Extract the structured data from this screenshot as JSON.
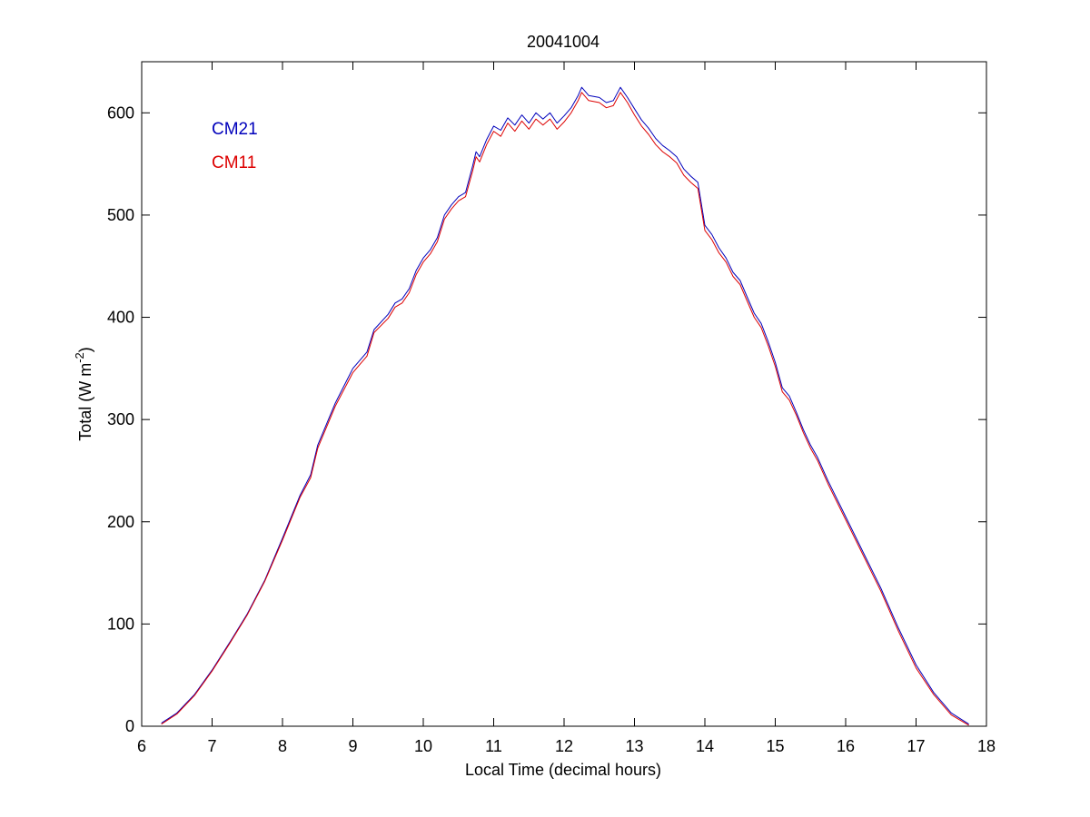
{
  "chart_data": {
    "type": "line",
    "title": "20041004",
    "xlabel": "Local Time (decimal hours)",
    "ylabel_main": "Total (W m",
    "ylabel_sup": "-2",
    "ylabel_close": ")",
    "xlim": [
      6,
      18
    ],
    "ylim": [
      0,
      650
    ],
    "xticks": [
      6,
      7,
      8,
      9,
      10,
      11,
      12,
      13,
      14,
      15,
      16,
      17,
      18
    ],
    "yticks": [
      0,
      100,
      200,
      300,
      400,
      500,
      600
    ],
    "grid": false,
    "legend_position": "top-left",
    "series": [
      {
        "name": "CM21",
        "color": "#0000bb",
        "points": [
          [
            6.28,
            3
          ],
          [
            6.5,
            13
          ],
          [
            6.75,
            31
          ],
          [
            7.0,
            55
          ],
          [
            7.25,
            82
          ],
          [
            7.5,
            110
          ],
          [
            7.75,
            143
          ],
          [
            8.0,
            184
          ],
          [
            8.25,
            226
          ],
          [
            8.4,
            246
          ],
          [
            8.5,
            275
          ],
          [
            8.75,
            316
          ],
          [
            9.0,
            350
          ],
          [
            9.2,
            366
          ],
          [
            9.3,
            388
          ],
          [
            9.5,
            403
          ],
          [
            9.6,
            414
          ],
          [
            9.7,
            418
          ],
          [
            9.8,
            428
          ],
          [
            9.9,
            446
          ],
          [
            10.0,
            458
          ],
          [
            10.1,
            466
          ],
          [
            10.2,
            478
          ],
          [
            10.3,
            500
          ],
          [
            10.4,
            510
          ],
          [
            10.5,
            518
          ],
          [
            10.6,
            522
          ],
          [
            10.7,
            548
          ],
          [
            10.75,
            562
          ],
          [
            10.8,
            557
          ],
          [
            10.9,
            574
          ],
          [
            11.0,
            587
          ],
          [
            11.1,
            583
          ],
          [
            11.2,
            595
          ],
          [
            11.3,
            588
          ],
          [
            11.4,
            598
          ],
          [
            11.5,
            590
          ],
          [
            11.6,
            600
          ],
          [
            11.7,
            594
          ],
          [
            11.8,
            600
          ],
          [
            11.9,
            590
          ],
          [
            12.0,
            597
          ],
          [
            12.1,
            605
          ],
          [
            12.2,
            617
          ],
          [
            12.25,
            625
          ],
          [
            12.35,
            617
          ],
          [
            12.5,
            615
          ],
          [
            12.6,
            610
          ],
          [
            12.7,
            612
          ],
          [
            12.8,
            625
          ],
          [
            12.9,
            615
          ],
          [
            13.0,
            604
          ],
          [
            13.1,
            593
          ],
          [
            13.2,
            585
          ],
          [
            13.3,
            575
          ],
          [
            13.4,
            568
          ],
          [
            13.5,
            563
          ],
          [
            13.6,
            557
          ],
          [
            13.7,
            545
          ],
          [
            13.8,
            538
          ],
          [
            13.9,
            532
          ],
          [
            14.0,
            490
          ],
          [
            14.1,
            481
          ],
          [
            14.2,
            468
          ],
          [
            14.3,
            458
          ],
          [
            14.4,
            444
          ],
          [
            14.5,
            436
          ],
          [
            14.6,
            420
          ],
          [
            14.7,
            404
          ],
          [
            14.8,
            394
          ],
          [
            14.9,
            376
          ],
          [
            15.0,
            356
          ],
          [
            15.1,
            331
          ],
          [
            15.2,
            323
          ],
          [
            15.3,
            307
          ],
          [
            15.4,
            290
          ],
          [
            15.5,
            275
          ],
          [
            15.6,
            263
          ],
          [
            15.75,
            240
          ],
          [
            16.0,
            205
          ],
          [
            16.25,
            170
          ],
          [
            16.5,
            135
          ],
          [
            16.75,
            96
          ],
          [
            17.0,
            60
          ],
          [
            17.25,
            33
          ],
          [
            17.5,
            13
          ],
          [
            17.75,
            2
          ]
        ]
      },
      {
        "name": "CM11",
        "color": "#dd0000",
        "points": [
          [
            6.28,
            2
          ],
          [
            6.5,
            12
          ],
          [
            6.75,
            30
          ],
          [
            7.0,
            54
          ],
          [
            7.25,
            81
          ],
          [
            7.5,
            109
          ],
          [
            7.75,
            142
          ],
          [
            8.0,
            182
          ],
          [
            8.25,
            224
          ],
          [
            8.4,
            243
          ],
          [
            8.5,
            272
          ],
          [
            8.75,
            313
          ],
          [
            9.0,
            346
          ],
          [
            9.2,
            362
          ],
          [
            9.3,
            385
          ],
          [
            9.5,
            399
          ],
          [
            9.6,
            410
          ],
          [
            9.7,
            414
          ],
          [
            9.8,
            424
          ],
          [
            9.9,
            442
          ],
          [
            10.0,
            454
          ],
          [
            10.1,
            462
          ],
          [
            10.2,
            474
          ],
          [
            10.3,
            496
          ],
          [
            10.4,
            506
          ],
          [
            10.5,
            514
          ],
          [
            10.6,
            518
          ],
          [
            10.7,
            543
          ],
          [
            10.75,
            557
          ],
          [
            10.8,
            552
          ],
          [
            10.9,
            569
          ],
          [
            11.0,
            582
          ],
          [
            11.1,
            577
          ],
          [
            11.2,
            590
          ],
          [
            11.3,
            582
          ],
          [
            11.4,
            592
          ],
          [
            11.5,
            584
          ],
          [
            11.6,
            594
          ],
          [
            11.7,
            588
          ],
          [
            11.8,
            594
          ],
          [
            11.9,
            584
          ],
          [
            12.0,
            591
          ],
          [
            12.1,
            600
          ],
          [
            12.2,
            612
          ],
          [
            12.25,
            620
          ],
          [
            12.35,
            612
          ],
          [
            12.5,
            610
          ],
          [
            12.6,
            605
          ],
          [
            12.7,
            607
          ],
          [
            12.8,
            620
          ],
          [
            12.9,
            610
          ],
          [
            13.0,
            598
          ],
          [
            13.1,
            587
          ],
          [
            13.2,
            579
          ],
          [
            13.3,
            569
          ],
          [
            13.4,
            562
          ],
          [
            13.5,
            557
          ],
          [
            13.6,
            551
          ],
          [
            13.7,
            539
          ],
          [
            13.8,
            532
          ],
          [
            13.9,
            526
          ],
          [
            14.0,
            485
          ],
          [
            14.1,
            476
          ],
          [
            14.2,
            463
          ],
          [
            14.3,
            454
          ],
          [
            14.4,
            440
          ],
          [
            14.5,
            432
          ],
          [
            14.6,
            416
          ],
          [
            14.7,
            400
          ],
          [
            14.8,
            390
          ],
          [
            14.9,
            372
          ],
          [
            15.0,
            352
          ],
          [
            15.1,
            327
          ],
          [
            15.2,
            319
          ],
          [
            15.3,
            304
          ],
          [
            15.4,
            287
          ],
          [
            15.5,
            272
          ],
          [
            15.6,
            260
          ],
          [
            15.75,
            237
          ],
          [
            16.0,
            202
          ],
          [
            16.25,
            167
          ],
          [
            16.5,
            132
          ],
          [
            16.75,
            93
          ],
          [
            17.0,
            57
          ],
          [
            17.25,
            31
          ],
          [
            17.5,
            11
          ],
          [
            17.75,
            1
          ]
        ]
      }
    ]
  }
}
